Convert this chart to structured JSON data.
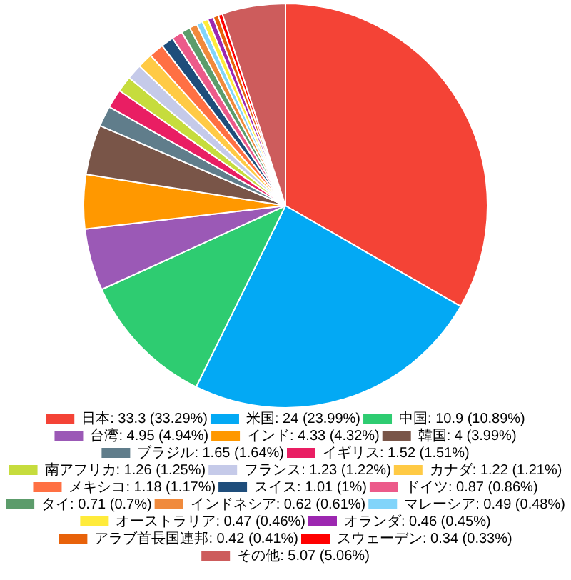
{
  "chart_data": {
    "type": "pie",
    "categories": [
      "日本",
      "米国",
      "中国",
      "台湾",
      "インド",
      "韓国",
      "ブラジル",
      "イギリス",
      "南アフリカ",
      "フランス",
      "カナダ",
      "メキシコ",
      "スイス",
      "ドイツ",
      "タイ",
      "インドネシア",
      "マレーシア",
      "オーストラリア",
      "オランダ",
      "アラブ首長国連邦",
      "スウェーデン",
      "その他"
    ],
    "values": [
      33.3,
      24,
      10.9,
      4.95,
      4.33,
      4,
      1.65,
      1.52,
      1.26,
      1.23,
      1.22,
      1.18,
      1.01,
      0.87,
      0.71,
      0.62,
      0.49,
      0.47,
      0.46,
      0.42,
      0.34,
      5.07
    ],
    "value_labels": [
      "33.3 (33.29%)",
      "24 (23.99%)",
      "10.9 (10.89%)",
      "4.95 (4.94%)",
      "4.33 (4.32%)",
      "4 (3.99%)",
      "1.65 (1.64%)",
      "1.52 (1.51%)",
      "1.26 (1.25%)",
      "1.23 (1.22%)",
      "1.22 (1.21%)",
      "1.18 (1.17%)",
      "1.01 (1%)",
      "0.87 (0.86%)",
      "0.71 (0.7%)",
      "0.62 (0.61%)",
      "0.49 (0.48%)",
      "0.47 (0.46%)",
      "0.46 (0.45%)",
      "0.42 (0.41%)",
      "0.34 (0.33%)",
      "5.07 (5.06%)"
    ],
    "colors": [
      "#f44336",
      "#03a9f4",
      "#2ecc71",
      "#9b59b6",
      "#ff9800",
      "#795548",
      "#607d8b",
      "#e91e63",
      "#c6dc3d",
      "#c5cae9",
      "#ffca45",
      "#ff7043",
      "#1e4d7b",
      "#ec5a8a",
      "#5c9c6b",
      "#f08a3c",
      "#81d4fa",
      "#ffeb3b",
      "#9c27b0",
      "#e8620a",
      "#ff0000",
      "#cd5c5c"
    ],
    "legend": "bottom"
  }
}
